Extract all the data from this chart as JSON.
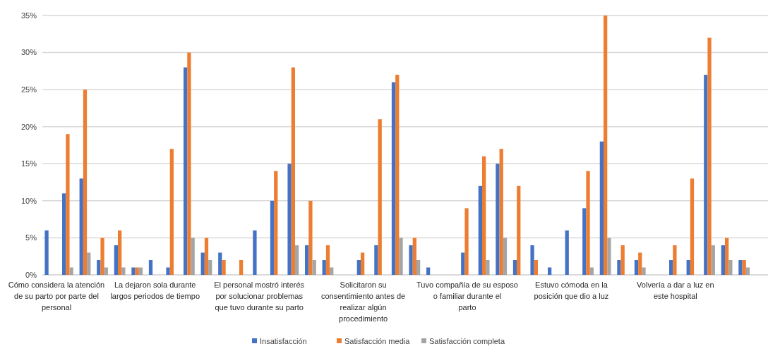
{
  "chart_data": {
    "type": "bar",
    "categories": [
      "Cómo considera la atención de su parto por parte del personal",
      null,
      null,
      null,
      null,
      null,
      "La dejaron sola durante largos periodos de tiempo",
      null,
      null,
      null,
      null,
      null,
      "El personal mostró interés por solucionar problemas que tuvo durante su parto",
      null,
      null,
      null,
      null,
      null,
      "Solicitaron su consentimiento antes de realizar algún procedimiento",
      null,
      null,
      null,
      null,
      null,
      "Tuvo compañía de su esposo o familiar durante el parto",
      null,
      null,
      null,
      null,
      null,
      "Estuvo cómoda en la posición que dio a luz",
      null,
      null,
      null,
      null,
      null,
      "Volvería a dar a luz en este hospital",
      null,
      null,
      null,
      null,
      null
    ],
    "series": [
      {
        "name": "Insatisfacción",
        "color": "#4472c4",
        "values": [
          6,
          11,
          13,
          2,
          4,
          1,
          2,
          1,
          28,
          3,
          3,
          0,
          6,
          10,
          15,
          4,
          2,
          0,
          2,
          4,
          26,
          4,
          1,
          0,
          3,
          12,
          15,
          2,
          4,
          1,
          6,
          9,
          18,
          2,
          2,
          0,
          2,
          2,
          27,
          4,
          2,
          0
        ]
      },
      {
        "name": "Satisfacción media",
        "color": "#ed7d31",
        "values": [
          0,
          19,
          25,
          5,
          6,
          1,
          0,
          17,
          30,
          5,
          2,
          2,
          0,
          14,
          28,
          10,
          4,
          0,
          3,
          21,
          27,
          5,
          0,
          0,
          9,
          16,
          17,
          12,
          2,
          0,
          0,
          14,
          35,
          4,
          3,
          0,
          4,
          13,
          32,
          5,
          2,
          0
        ]
      },
      {
        "name": "Satisfacción completa",
        "color": "#a5a5a5",
        "values": [
          0,
          1,
          3,
          1,
          1,
          1,
          0,
          0,
          5,
          2,
          0,
          0,
          0,
          0,
          4,
          2,
          1,
          0,
          0,
          0,
          5,
          2,
          0,
          0,
          0,
          2,
          5,
          0,
          0,
          0,
          0,
          1,
          5,
          0,
          1,
          0,
          0,
          0,
          4,
          2,
          1,
          0
        ]
      }
    ],
    "ylim": [
      0,
      35
    ],
    "yticks": [
      {
        "value": 0,
        "label": "0%"
      },
      {
        "value": 5,
        "label": "5%"
      },
      {
        "value": 10,
        "label": "10%"
      },
      {
        "value": 15,
        "label": "15%"
      },
      {
        "value": 20,
        "label": "20%"
      },
      {
        "value": 25,
        "label": "25%"
      },
      {
        "value": 30,
        "label": "30%"
      },
      {
        "value": 35,
        "label": "35%"
      }
    ],
    "grid": "y",
    "legend": "bottom"
  }
}
